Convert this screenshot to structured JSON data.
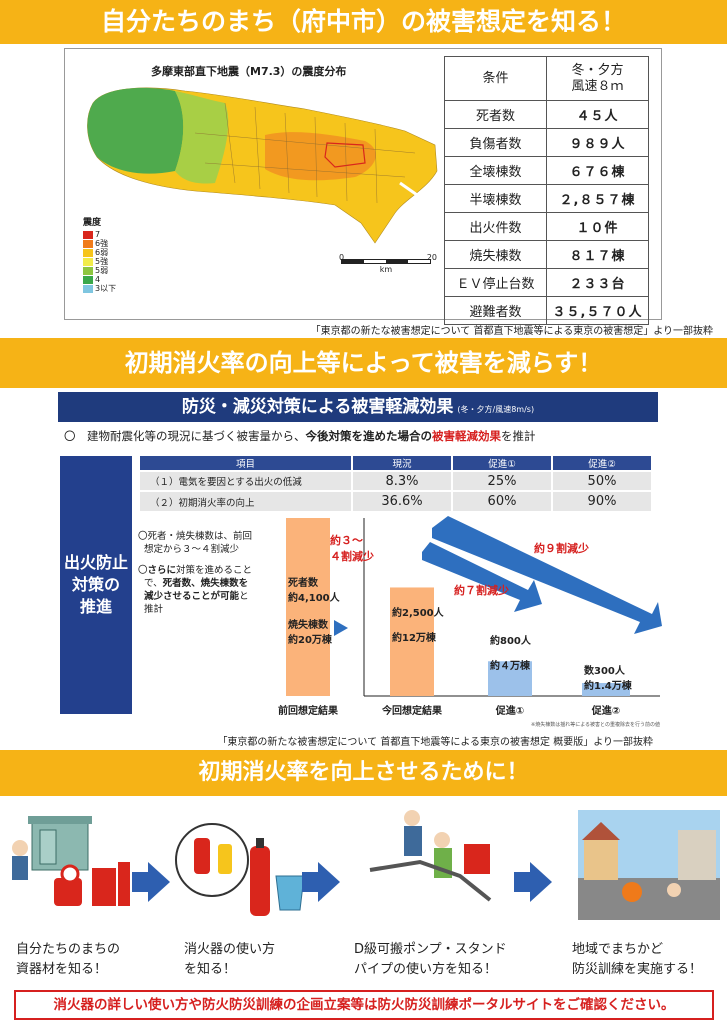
{
  "banners": {
    "b1": "自分たちのまち（府中市）の被害想定を知る！",
    "b2": "初期消火率の向上等によって被害を減らす！",
    "b3": "初期消火率を向上させるために！"
  },
  "section1": {
    "map_title": "多摩東部直下地震（M7.3）の震度分布",
    "legend_title": "震度",
    "legend": [
      {
        "label": "7",
        "color": "#d9261c"
      },
      {
        "label": "6強",
        "color": "#f07b1a"
      },
      {
        "label": "6弱",
        "color": "#f6c51c"
      },
      {
        "label": "5強",
        "color": "#f2ec4a"
      },
      {
        "label": "5弱",
        "color": "#8ec63f"
      },
      {
        "label": "4",
        "color": "#3aa84a"
      },
      {
        "label": "3以下",
        "color": "#7fc6e0"
      }
    ],
    "scale": {
      "min": "0",
      "max": "20",
      "unit": "km"
    },
    "table_head": {
      "key": "条件",
      "value_line1": "冬・夕方",
      "value_line2": "風速８ｍ"
    },
    "table": [
      {
        "key": "死者数",
        "value": "４５人"
      },
      {
        "key": "負傷者数",
        "value": "９８９人"
      },
      {
        "key": "全壊棟数",
        "value": "６７６棟"
      },
      {
        "key": "半壊棟数",
        "value": "２,８５７棟"
      },
      {
        "key": "出火件数",
        "value": "１０件"
      },
      {
        "key": "焼失棟数",
        "value": "８１７棟"
      },
      {
        "key": "ＥＶ停止台数",
        "value": "２３３台"
      },
      {
        "key": "避難者数",
        "value": "３５,５７０人"
      }
    ],
    "source": "「東京都の新たな被害想定について 首都直下地震等による東京の被害想定」より一部抜粋"
  },
  "section2": {
    "title": "防災・減災対策による被害軽減効果",
    "title_sub": "(冬・夕方/風速8m/s)",
    "intro_a": "〇　建物耐震化等の現況に基づく被害量から、",
    "intro_b": "今後対策を進めた場合の",
    "intro_c": "被害軽減効果",
    "intro_d": "を推計",
    "left_label_1": "出火防止",
    "left_label_2": "対策の",
    "left_label_3": "推進",
    "table_header": [
      "項目",
      "現況",
      "促進①",
      "促進②"
    ],
    "table_rows": [
      [
        "（１）電気を要因とする出火の低減",
        "8.3%",
        "25%",
        "50%"
      ],
      [
        "（２）初期消火率の向上",
        "36.6%",
        "60%",
        "90%"
      ]
    ],
    "note1_a": "〇死者・焼失棟数は、前回",
    "note1_b": "想定から３～４割減少",
    "note2_a": "〇",
    "note2_b": "さらに",
    "note2_c": "対策を進めること",
    "note2_d": "で、",
    "note2_e": "死者数、焼失棟数を",
    "note2_f": "減少させることが可能",
    "note2_g": "と",
    "note2_h": "推計",
    "source": "「東京都の新たな被害想定について 首都直下地震等による東京の被害想定 概要版」より一部抜粋",
    "footnote": "※焼失棟数は揺れ等による被害との重複除去を行う前の値"
  },
  "chart_data": {
    "type": "bar",
    "categories": [
      "前回想定結果",
      "今回想定結果",
      "促進①",
      "促進②"
    ],
    "series": [
      {
        "name": "死者数",
        "values": [
          4100,
          2500,
          800,
          300
        ]
      },
      {
        "name": "焼失棟数",
        "values": [
          200000,
          120000,
          40000,
          14000
        ]
      }
    ],
    "bar_labels": [
      [
        "死者数",
        "約4,100人",
        "焼失棟数",
        "約20万棟"
      ],
      [
        "約2,500人",
        "約12万棟"
      ],
      [
        "約800人",
        "約４万棟"
      ],
      [
        "数300人",
        "約1.4万棟"
      ]
    ],
    "annotations": [
      "約３～",
      "４割減少",
      "約７割減少",
      "約９割減少"
    ],
    "colors": {
      "prev": "#fbb37a",
      "now": "#fbb37a",
      "promo": "#9cc1ea",
      "arrow": "#2e6fbf"
    }
  },
  "section3": {
    "steps": [
      {
        "caption1": "自分たちのまちの",
        "caption2": "資器材を知る！"
      },
      {
        "caption1": "消火器の使い方",
        "caption2": "を知る！"
      },
      {
        "caption1": "D級可搬ポンプ・スタンド",
        "caption2": "パイプの使い方を知る！"
      },
      {
        "caption1": "地域でまちかど",
        "caption2": "防災訓練を実施する！"
      }
    ]
  },
  "footer": "消火器の詳しい使い方や防火防災訓練の企画立案等は防火防災訓練ポータルサイトをご確認ください。"
}
